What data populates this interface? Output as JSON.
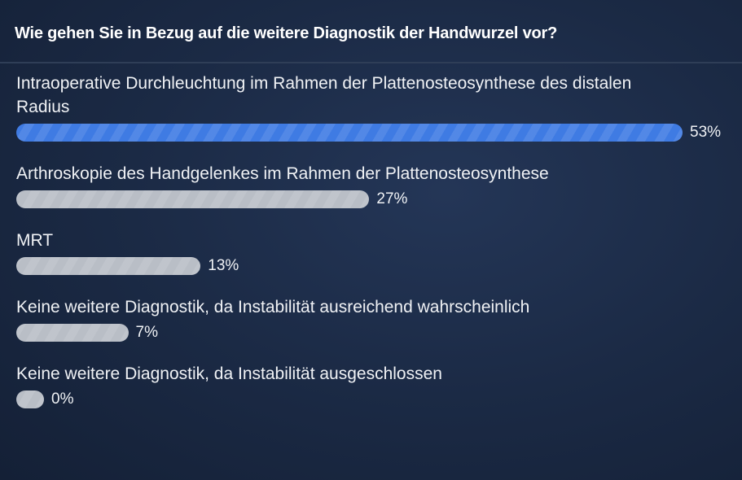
{
  "question": "Wie gehen Sie in Bezug auf die weitere Diagnostik der Handwurzel vor?",
  "colors": {
    "leading": "#3f7be3",
    "other": "#b9bec6"
  },
  "options": [
    {
      "label": "Intraoperative Durchleuchtung im Rahmen der Plattenosteosynthese des distalen Radius",
      "percent": 53,
      "percent_label": "53%",
      "leading": true
    },
    {
      "label": "Arthroskopie des Handgelenkes im Rahmen der Plattenosteosynthese",
      "percent": 27,
      "percent_label": "27%",
      "leading": false
    },
    {
      "label": "MRT",
      "percent": 13,
      "percent_label": "13%",
      "leading": false
    },
    {
      "label": "Keine weitere Diagnostik, da Instabilität ausreichend wahrscheinlich",
      "percent": 7,
      "percent_label": "7%",
      "leading": false
    },
    {
      "label": "Keine weitere Diagnostik, da Instabilität ausgeschlossen",
      "percent": 0,
      "percent_label": "0%",
      "leading": false
    }
  ]
}
